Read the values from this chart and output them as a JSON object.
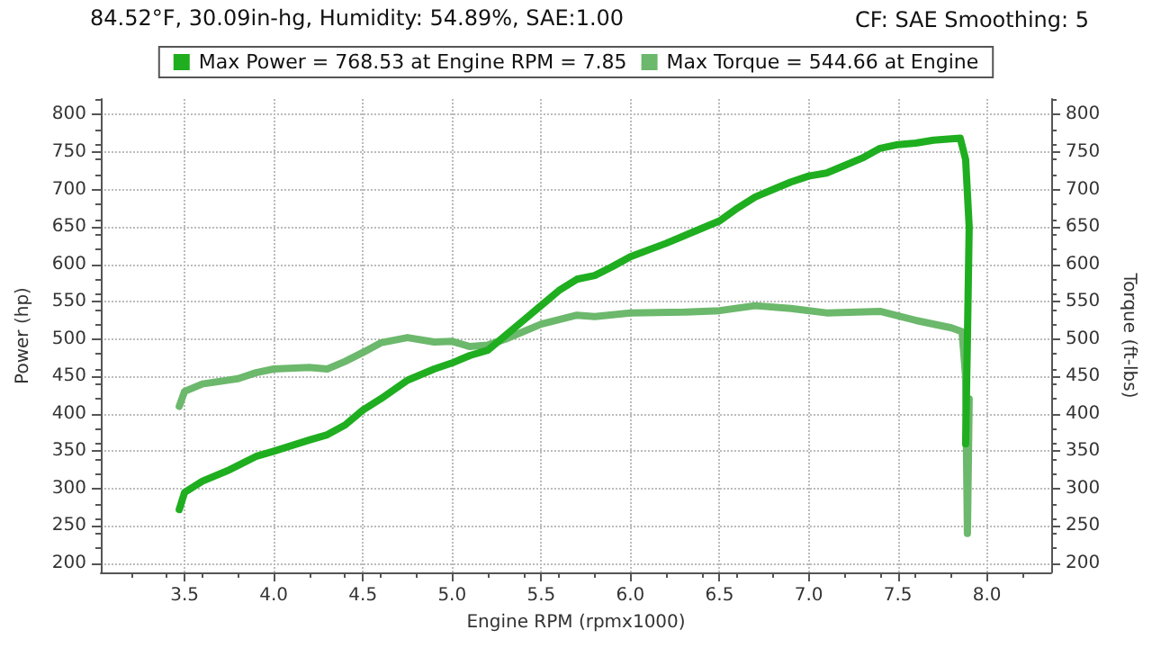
{
  "chart_data": {
    "type": "line",
    "subtitle": "CF: SAE Smoothing: 5",
    "xlabel": "Engine RPM (rpmx1000)",
    "ylabel": "Power (hp)",
    "y2label": "Torque (ft-lbs)",
    "annotations": [
      "84.52°F, 30.09in-hg, Humidity: 54.89%, SAE:1.00"
    ],
    "xlim": [
      3.03,
      8.36
    ],
    "xticks": [
      3.5,
      {
        "value": 4,
        "label": "4.0"
      },
      4.5,
      {
        "value": 5,
        "label": "5.0"
      },
      5.5,
      {
        "value": 6,
        "label": "6.0"
      },
      6.5,
      {
        "value": 7,
        "label": "7.0"
      },
      7.5,
      {
        "value": 8,
        "label": "8.0"
      }
    ],
    "ylim": [
      188,
      821
    ],
    "yticks": [
      200,
      250,
      300,
      350,
      400,
      450,
      500,
      550,
      600,
      650,
      700,
      750,
      800
    ],
    "y2lim": [
      188,
      821
    ],
    "y2ticks": [
      200,
      250,
      300,
      350,
      400,
      450,
      500,
      550,
      600,
      650,
      700,
      750,
      800
    ],
    "grid": true,
    "legend": "top",
    "marker": "none",
    "line_style": "solid",
    "series": [
      {
        "name": "Max Power = 768.53 at Engine RPM = 7.85",
        "color": "#1fae1f",
        "x": [
          3.47,
          3.5,
          3.6,
          3.75,
          3.9,
          4.0,
          4.2,
          4.3,
          4.4,
          4.5,
          4.6,
          4.75,
          4.9,
          5.0,
          5.1,
          5.2,
          5.3,
          5.4,
          5.5,
          5.6,
          5.7,
          5.8,
          5.9,
          6.0,
          6.2,
          6.4,
          6.5,
          6.6,
          6.7,
          6.8,
          6.9,
          7.0,
          7.1,
          7.2,
          7.3,
          7.4,
          7.5,
          7.6,
          7.7,
          7.85,
          7.88,
          7.9,
          7.89,
          7.88
        ],
        "values": [
          272,
          295,
          310,
          325,
          343,
          350,
          365,
          372,
          385,
          405,
          420,
          445,
          460,
          468,
          478,
          485,
          505,
          525,
          545,
          565,
          580,
          585,
          597,
          610,
          628,
          648,
          658,
          675,
          690,
          700,
          710,
          718,
          722,
          732,
          742,
          755,
          760,
          762,
          766,
          768.53,
          740,
          650,
          500,
          360
        ]
      },
      {
        "name": "Max Torque = 544.66 at Engine",
        "color": "#6cb86c",
        "axis": "y2",
        "x": [
          3.47,
          3.5,
          3.6,
          3.8,
          3.9,
          4.0,
          4.2,
          4.3,
          4.4,
          4.5,
          4.6,
          4.75,
          4.9,
          5.0,
          5.1,
          5.2,
          5.3,
          5.5,
          5.7,
          5.8,
          6.0,
          6.3,
          6.5,
          6.7,
          6.9,
          7.1,
          7.4,
          7.6,
          7.8,
          7.86,
          7.88,
          7.89,
          7.9
        ],
        "values": [
          410,
          430,
          440,
          447,
          455,
          460,
          462,
          460,
          470,
          482,
          495,
          502,
          496,
          497,
          490,
          492,
          500,
          520,
          532,
          530,
          535,
          536,
          538,
          544.66,
          541,
          535,
          537,
          525,
          515,
          510,
          450,
          240,
          420
        ]
      }
    ]
  }
}
